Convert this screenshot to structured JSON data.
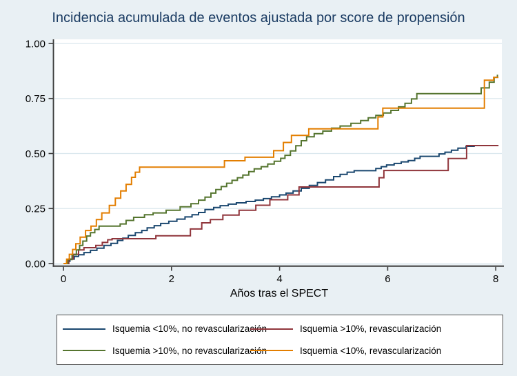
{
  "title": "Incidencia acumulada de eventos ajustada por score de propensión",
  "colors": {
    "background": "#e9f0f4",
    "plot_background": "#ffffff",
    "gridline": "#dbe8ee",
    "axis": "#3d3d3d",
    "title_text": "#1b3c63",
    "tick_text": "#000000",
    "navy": "#1a476f",
    "maroon": "#90353b",
    "green": "#55752f",
    "orange": "#e37e00"
  },
  "legend": {
    "items": [
      {
        "label": "Isquemia <10%, no revascularización",
        "color": "#1a476f"
      },
      {
        "label": "Isquemia >10%, revascularización",
        "color": "#90353b"
      },
      {
        "label": "Isquemia >10%, no revascularización",
        "color": "#55752f"
      },
      {
        "label": "Isquemia <10%, revascularización",
        "color": "#e37e00"
      }
    ]
  },
  "chart_data": {
    "type": "line",
    "step": true,
    "title": "Incidencia acumulada de eventos ajustada por score de propensión",
    "xlabel": "Años tras el SPECT",
    "ylabel": "",
    "xlim": [
      0,
      8.15
    ],
    "ylim": [
      0,
      1.0
    ],
    "grid": "horizontal",
    "legend_position": "bottom",
    "x_ticks": {
      "values": [
        0,
        2,
        4,
        6,
        8
      ],
      "labels": [
        "0",
        "2",
        "4",
        "6",
        "8"
      ]
    },
    "y_ticks": {
      "values": [
        0,
        0.25,
        0.5,
        0.75,
        1.0
      ],
      "labels": [
        "0.00",
        "0.25",
        "0.50",
        "0.75",
        "1.00"
      ]
    },
    "series": [
      {
        "name": "Isquemia <10%, no revascularización",
        "color": "#1a476f",
        "points": [
          [
            0,
            0
          ],
          [
            0.06,
            0.01
          ],
          [
            0.12,
            0.02
          ],
          [
            0.2,
            0.032
          ],
          [
            0.28,
            0.04
          ],
          [
            0.38,
            0.05
          ],
          [
            0.5,
            0.06
          ],
          [
            0.62,
            0.07
          ],
          [
            0.75,
            0.082
          ],
          [
            0.88,
            0.092
          ],
          [
            1.0,
            0.105
          ],
          [
            1.1,
            0.115
          ],
          [
            1.2,
            0.128
          ],
          [
            1.33,
            0.14
          ],
          [
            1.45,
            0.15
          ],
          [
            1.55,
            0.162
          ],
          [
            1.68,
            0.172
          ],
          [
            1.8,
            0.182
          ],
          [
            1.95,
            0.192
          ],
          [
            2.1,
            0.202
          ],
          [
            2.25,
            0.212
          ],
          [
            2.38,
            0.222
          ],
          [
            2.5,
            0.232
          ],
          [
            2.62,
            0.245
          ],
          [
            2.78,
            0.255
          ],
          [
            2.9,
            0.263
          ],
          [
            3.05,
            0.27
          ],
          [
            3.2,
            0.276
          ],
          [
            3.38,
            0.282
          ],
          [
            3.55,
            0.288
          ],
          [
            3.7,
            0.295
          ],
          [
            3.85,
            0.303
          ],
          [
            4.0,
            0.312
          ],
          [
            4.12,
            0.32
          ],
          [
            4.25,
            0.33
          ],
          [
            4.4,
            0.342
          ],
          [
            4.55,
            0.355
          ],
          [
            4.7,
            0.368
          ],
          [
            4.85,
            0.38
          ],
          [
            5.0,
            0.395
          ],
          [
            5.12,
            0.405
          ],
          [
            5.25,
            0.415
          ],
          [
            5.38,
            0.422
          ],
          [
            5.78,
            0.432
          ],
          [
            5.88,
            0.44
          ],
          [
            5.98,
            0.448
          ],
          [
            6.12,
            0.455
          ],
          [
            6.25,
            0.462
          ],
          [
            6.38,
            0.468
          ],
          [
            6.5,
            0.478
          ],
          [
            6.6,
            0.487
          ],
          [
            6.95,
            0.498
          ],
          [
            7.06,
            0.506
          ],
          [
            7.18,
            0.515
          ],
          [
            7.3,
            0.524
          ],
          [
            7.45,
            0.533
          ],
          [
            7.6,
            0.536
          ],
          [
            8.05,
            0.536
          ]
        ]
      },
      {
        "name": "Isquemia >10%, revascularización",
        "color": "#90353b",
        "points": [
          [
            0,
            0
          ],
          [
            0.1,
            0.02
          ],
          [
            0.18,
            0.042
          ],
          [
            0.28,
            0.062
          ],
          [
            0.38,
            0.072
          ],
          [
            0.6,
            0.082
          ],
          [
            0.72,
            0.096
          ],
          [
            0.82,
            0.108
          ],
          [
            0.9,
            0.113
          ],
          [
            1.71,
            0.126
          ],
          [
            2.35,
            0.157
          ],
          [
            2.56,
            0.185
          ],
          [
            2.72,
            0.2
          ],
          [
            2.95,
            0.22
          ],
          [
            3.25,
            0.242
          ],
          [
            3.56,
            0.265
          ],
          [
            3.82,
            0.29
          ],
          [
            4.15,
            0.312
          ],
          [
            4.36,
            0.348
          ],
          [
            5.84,
            0.39
          ],
          [
            5.93,
            0.423
          ],
          [
            7.12,
            0.477
          ],
          [
            7.46,
            0.536
          ],
          [
            8.05,
            0.536
          ]
        ]
      },
      {
        "name": "Isquemia >10%, no revascularización",
        "color": "#55752f",
        "points": [
          [
            0,
            0
          ],
          [
            0.08,
            0.018
          ],
          [
            0.16,
            0.04
          ],
          [
            0.24,
            0.062
          ],
          [
            0.3,
            0.082
          ],
          [
            0.36,
            0.102
          ],
          [
            0.43,
            0.125
          ],
          [
            0.5,
            0.14
          ],
          [
            0.58,
            0.155
          ],
          [
            0.66,
            0.17
          ],
          [
            1.05,
            0.18
          ],
          [
            1.16,
            0.196
          ],
          [
            1.3,
            0.21
          ],
          [
            1.5,
            0.222
          ],
          [
            1.66,
            0.23
          ],
          [
            1.9,
            0.242
          ],
          [
            2.16,
            0.258
          ],
          [
            2.36,
            0.272
          ],
          [
            2.5,
            0.288
          ],
          [
            2.62,
            0.302
          ],
          [
            2.73,
            0.32
          ],
          [
            2.82,
            0.336
          ],
          [
            2.92,
            0.35
          ],
          [
            3.02,
            0.365
          ],
          [
            3.12,
            0.378
          ],
          [
            3.22,
            0.39
          ],
          [
            3.32,
            0.402
          ],
          [
            3.43,
            0.418
          ],
          [
            3.53,
            0.43
          ],
          [
            3.66,
            0.44
          ],
          [
            3.78,
            0.452
          ],
          [
            3.9,
            0.465
          ],
          [
            4.02,
            0.478
          ],
          [
            4.1,
            0.492
          ],
          [
            4.2,
            0.512
          ],
          [
            4.3,
            0.535
          ],
          [
            4.4,
            0.558
          ],
          [
            4.5,
            0.576
          ],
          [
            4.64,
            0.59
          ],
          [
            4.8,
            0.602
          ],
          [
            4.96,
            0.615
          ],
          [
            5.12,
            0.625
          ],
          [
            5.32,
            0.637
          ],
          [
            5.5,
            0.65
          ],
          [
            5.64,
            0.662
          ],
          [
            5.78,
            0.673
          ],
          [
            5.92,
            0.684
          ],
          [
            6.06,
            0.696
          ],
          [
            6.2,
            0.712
          ],
          [
            6.32,
            0.728
          ],
          [
            6.44,
            0.748
          ],
          [
            6.54,
            0.772
          ],
          [
            7.73,
            0.798
          ],
          [
            7.88,
            0.824
          ],
          [
            7.97,
            0.846
          ],
          [
            8.03,
            0.858
          ]
        ]
      },
      {
        "name": "Isquemia <10%, revascularización",
        "color": "#e37e00",
        "points": [
          [
            0,
            0
          ],
          [
            0.06,
            0.02
          ],
          [
            0.11,
            0.042
          ],
          [
            0.17,
            0.064
          ],
          [
            0.23,
            0.09
          ],
          [
            0.31,
            0.12
          ],
          [
            0.41,
            0.15
          ],
          [
            0.51,
            0.17
          ],
          [
            0.61,
            0.2
          ],
          [
            0.71,
            0.23
          ],
          [
            0.85,
            0.264
          ],
          [
            0.96,
            0.297
          ],
          [
            1.06,
            0.33
          ],
          [
            1.16,
            0.36
          ],
          [
            1.26,
            0.392
          ],
          [
            1.33,
            0.415
          ],
          [
            1.41,
            0.438
          ],
          [
            2.98,
            0.467
          ],
          [
            3.36,
            0.483
          ],
          [
            3.89,
            0.513
          ],
          [
            4.07,
            0.55
          ],
          [
            4.22,
            0.582
          ],
          [
            4.54,
            0.612
          ],
          [
            5.82,
            0.666
          ],
          [
            5.91,
            0.706
          ],
          [
            7.79,
            0.833
          ],
          [
            7.96,
            0.846
          ],
          [
            8.05,
            0.846
          ]
        ]
      }
    ]
  }
}
